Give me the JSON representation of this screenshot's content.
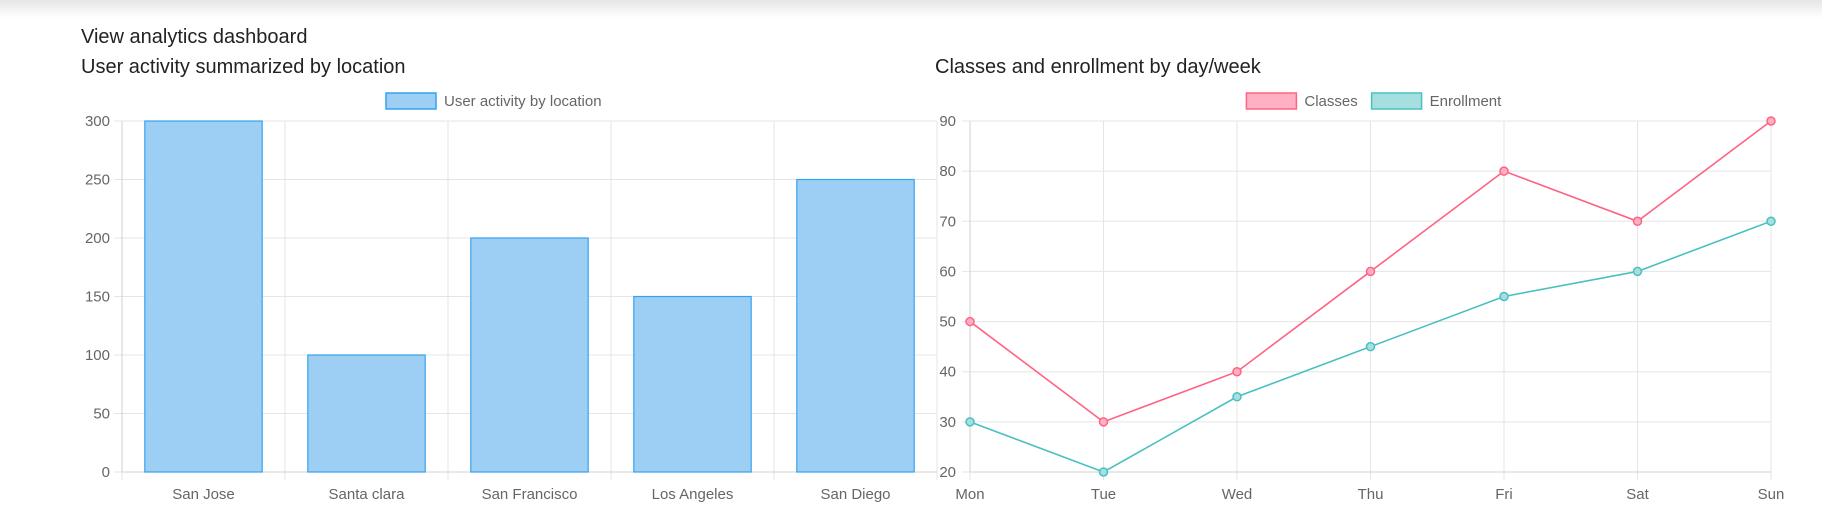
{
  "page": {
    "title": "View analytics dashboard"
  },
  "chart_data": [
    {
      "type": "bar",
      "title": "User activity summarized by location",
      "categories": [
        "San Jose",
        "Santa clara",
        "San Francisco",
        "Los Angeles",
        "San Diego"
      ],
      "series": [
        {
          "name": "User activity by location",
          "values": [
            300,
            100,
            200,
            150,
            250
          ],
          "fill": "#9dcff5",
          "stroke": "#36a2eb"
        }
      ],
      "ylim": [
        0,
        300
      ],
      "yticks": [
        0,
        50,
        100,
        150,
        200,
        250,
        300
      ],
      "grid": true,
      "legend": "top-center"
    },
    {
      "type": "line",
      "title": "Classes and enrollment by day/week",
      "categories": [
        "Mon",
        "Tue",
        "Wed",
        "Thu",
        "Fri",
        "Sat",
        "Sun"
      ],
      "series": [
        {
          "name": "Classes",
          "values": [
            50,
            30,
            40,
            60,
            80,
            70,
            90
          ],
          "stroke": "#ff6384",
          "fill": "#ffb1c1"
        },
        {
          "name": "Enrollment",
          "values": [
            30,
            20,
            35,
            45,
            55,
            60,
            70
          ],
          "stroke": "#4bc0c0",
          "fill": "#a5dfdf"
        }
      ],
      "ylim": [
        20,
        90
      ],
      "yticks": [
        20,
        30,
        40,
        50,
        60,
        70,
        80,
        90
      ],
      "grid": true,
      "legend": "top-center"
    }
  ]
}
